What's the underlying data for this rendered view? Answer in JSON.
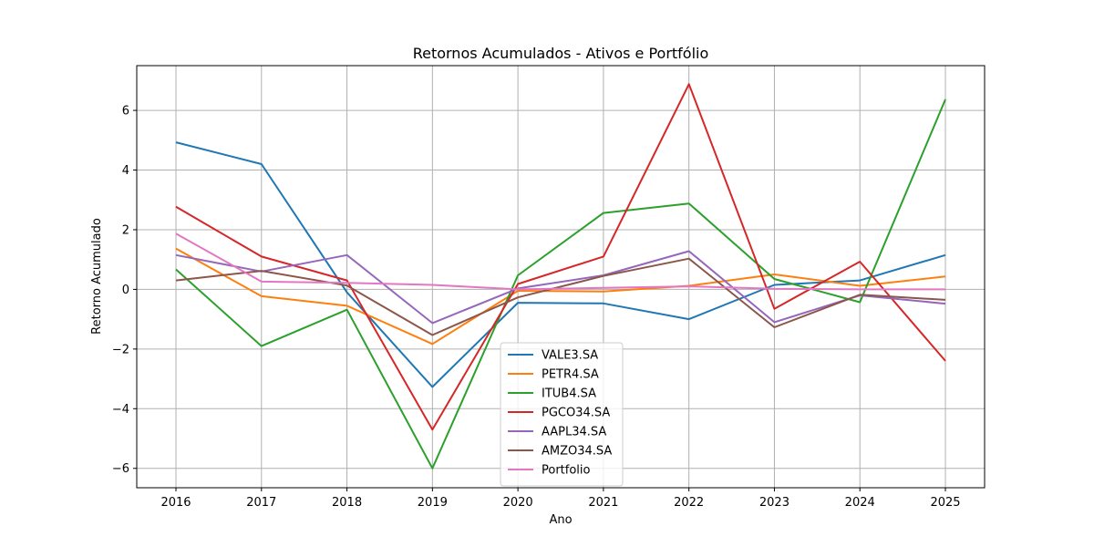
{
  "chart_data": {
    "type": "line",
    "title": "Retornos Acumulados - Ativos e Portfólio",
    "xlabel": "Ano",
    "ylabel": "Retorno Acumulado",
    "x": [
      "2016",
      "2017",
      "2018",
      "2019",
      "2020",
      "2021",
      "2022",
      "2023",
      "2024",
      "2025"
    ],
    "yticks": [
      "−6",
      "−4",
      "−2",
      "0",
      "2",
      "4",
      "6"
    ],
    "ylim": [
      -6.65,
      7.5
    ],
    "grid": true,
    "legend_position": "lower center",
    "series": [
      {
        "name": "VALE3.SA",
        "color": "#1f77b4",
        "values": [
          4.93,
          4.2,
          -0.1,
          -3.27,
          -0.45,
          -0.47,
          -1.0,
          0.15,
          0.3,
          1.15
        ]
      },
      {
        "name": "PETR4.SA",
        "color": "#ff7f0e",
        "values": [
          1.37,
          -0.23,
          -0.55,
          -1.83,
          -0.05,
          -0.07,
          0.12,
          0.5,
          0.12,
          0.43
        ]
      },
      {
        "name": "ITUB4.SA",
        "color": "#2ca02c",
        "values": [
          0.67,
          -1.9,
          -0.68,
          -6.0,
          0.47,
          2.56,
          2.88,
          0.35,
          -0.43,
          6.37
        ]
      },
      {
        "name": "PGCO34.SA",
        "color": "#d62728",
        "values": [
          2.77,
          1.1,
          0.3,
          -4.7,
          0.18,
          1.1,
          6.88,
          -0.65,
          0.93,
          -2.4
        ]
      },
      {
        "name": "AAPL34.SA",
        "color": "#9467bd",
        "values": [
          1.15,
          0.6,
          1.15,
          -1.13,
          0.03,
          0.47,
          1.28,
          -1.1,
          -0.2,
          -0.48
        ]
      },
      {
        "name": "AMZO34.SA",
        "color": "#8c564b",
        "values": [
          0.3,
          0.62,
          0.13,
          -1.53,
          -0.27,
          0.45,
          1.03,
          -1.27,
          -0.18,
          -0.35
        ]
      },
      {
        "name": "Portfolio",
        "color": "#e377c2",
        "values": [
          1.87,
          0.26,
          0.22,
          0.15,
          0.0,
          0.05,
          0.1,
          0.02,
          0.0,
          0.0
        ]
      }
    ]
  }
}
